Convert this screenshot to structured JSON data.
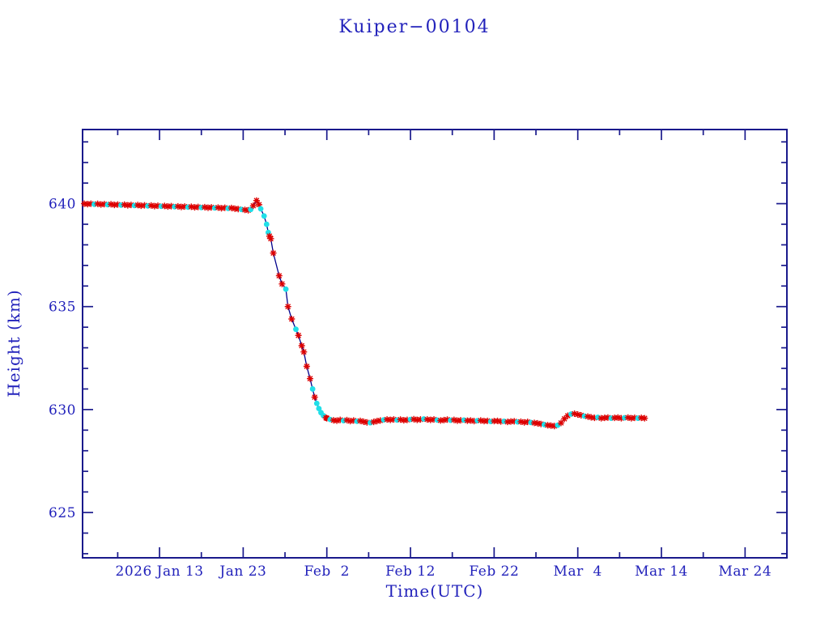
{
  "window": {
    "background": "#ffffff"
  },
  "colors": {
    "text_blue": "#2222bb",
    "axis_navy": "#1a1a8c",
    "line_navy": "#00008b",
    "marker_red": "#dc0000",
    "marker_cyan": "#20dfe8",
    "background": "#ffffff"
  },
  "chart_data": {
    "type": "line",
    "title": "Kuiper−00104",
    "xlabel": "Time(UTC)",
    "ylabel": "Height (km)",
    "x_axis_note": "t is days since 2026 Jan 4 00:00 UTC",
    "xlim": [
      -0.2,
      84
    ],
    "ylim": [
      622.8,
      643.6
    ],
    "grid": false,
    "legend": "none",
    "x_ticks": [
      {
        "t": 9,
        "label": "2026 Jan 13"
      },
      {
        "t": 19,
        "label": "Jan 23"
      },
      {
        "t": 29,
        "label": "Feb  2"
      },
      {
        "t": 39,
        "label": "Feb 12"
      },
      {
        "t": 49,
        "label": "Feb 22"
      },
      {
        "t": 59,
        "label": "Mar  4"
      },
      {
        "t": 69,
        "label": "Mar 14"
      },
      {
        "t": 79,
        "label": "Mar 24"
      }
    ],
    "x_minor_ticks": [
      4,
      14,
      24,
      34,
      44,
      54,
      64,
      74
    ],
    "y_ticks": [
      {
        "v": 625,
        "label": "625"
      },
      {
        "v": 630,
        "label": "630"
      },
      {
        "v": 635,
        "label": "635"
      },
      {
        "v": 640,
        "label": "640"
      }
    ],
    "y_minor_step": 1,
    "marker_legend": {
      "r": "red asterisk measurement",
      "c": "cyan dot measurement"
    },
    "points": [
      [
        0,
        640.0,
        "r"
      ],
      [
        0.4,
        639.98,
        "r"
      ],
      [
        0.8,
        640.0,
        "r"
      ],
      [
        1.2,
        639.97,
        "c"
      ],
      [
        1.6,
        639.99,
        "r"
      ],
      [
        2,
        639.96,
        "r"
      ],
      [
        2.4,
        639.98,
        "r"
      ],
      [
        2.8,
        639.95,
        "c"
      ],
      [
        3.2,
        639.97,
        "r"
      ],
      [
        3.6,
        639.94,
        "r"
      ],
      [
        4,
        639.96,
        "r"
      ],
      [
        4.4,
        639.93,
        "c"
      ],
      [
        4.8,
        639.95,
        "r"
      ],
      [
        5.2,
        639.92,
        "r"
      ],
      [
        5.6,
        639.94,
        "r"
      ],
      [
        6,
        639.91,
        "c"
      ],
      [
        6.4,
        639.93,
        "r"
      ],
      [
        6.8,
        639.9,
        "r"
      ],
      [
        7.2,
        639.92,
        "r"
      ],
      [
        7.6,
        639.89,
        "c"
      ],
      [
        8,
        639.91,
        "r"
      ],
      [
        8.4,
        639.88,
        "r"
      ],
      [
        8.8,
        639.9,
        "r"
      ],
      [
        9.2,
        639.87,
        "c"
      ],
      [
        9.6,
        639.89,
        "r"
      ],
      [
        10,
        639.86,
        "r"
      ],
      [
        10.4,
        639.88,
        "r"
      ],
      [
        10.8,
        639.85,
        "c"
      ],
      [
        11.2,
        639.87,
        "r"
      ],
      [
        11.6,
        639.84,
        "r"
      ],
      [
        12,
        639.86,
        "r"
      ],
      [
        12.4,
        639.83,
        "c"
      ],
      [
        12.8,
        639.85,
        "r"
      ],
      [
        13.2,
        639.82,
        "r"
      ],
      [
        13.6,
        639.84,
        "r"
      ],
      [
        14,
        639.81,
        "c"
      ],
      [
        14.4,
        639.83,
        "r"
      ],
      [
        14.8,
        639.8,
        "r"
      ],
      [
        15.2,
        639.82,
        "r"
      ],
      [
        15.6,
        639.79,
        "c"
      ],
      [
        16,
        639.81,
        "r"
      ],
      [
        16.4,
        639.78,
        "r"
      ],
      [
        16.8,
        639.8,
        "r"
      ],
      [
        17.2,
        639.77,
        "c"
      ],
      [
        17.6,
        639.79,
        "r"
      ],
      [
        18,
        639.76,
        "r"
      ],
      [
        18.4,
        639.74,
        "r"
      ],
      [
        18.8,
        639.72,
        "c"
      ],
      [
        19.2,
        639.7,
        "r"
      ],
      [
        19.6,
        639.68,
        "r"
      ],
      [
        19.9,
        639.72,
        "c"
      ],
      [
        20.2,
        639.9,
        "r"
      ],
      [
        20.6,
        640.15,
        "r"
      ],
      [
        20.9,
        639.95,
        "r"
      ],
      [
        21.1,
        639.75,
        "c"
      ],
      [
        21.5,
        639.4,
        "c"
      ],
      [
        21.8,
        639.0,
        "c"
      ],
      [
        22.0,
        638.6,
        "c"
      ],
      [
        22.15,
        638.42,
        "r"
      ],
      [
        22.3,
        638.3,
        "r"
      ],
      [
        22.6,
        637.6,
        "r"
      ],
      [
        23.3,
        636.5,
        "r"
      ],
      [
        23.65,
        636.1,
        "r"
      ],
      [
        24.1,
        635.85,
        "c"
      ],
      [
        24.35,
        635.0,
        "r"
      ],
      [
        24.8,
        634.4,
        "r"
      ],
      [
        25.3,
        633.9,
        "c"
      ],
      [
        25.6,
        633.6,
        "r"
      ],
      [
        26.0,
        633.1,
        "r"
      ],
      [
        26.25,
        632.8,
        "r"
      ],
      [
        26.6,
        632.1,
        "r"
      ],
      [
        27.0,
        631.5,
        "r"
      ],
      [
        27.3,
        631.0,
        "c"
      ],
      [
        27.55,
        630.6,
        "r"
      ],
      [
        27.8,
        630.3,
        "c"
      ],
      [
        28.05,
        630.05,
        "c"
      ],
      [
        28.3,
        629.85,
        "c"
      ],
      [
        28.6,
        629.7,
        "c"
      ],
      [
        28.9,
        629.6,
        "r"
      ],
      [
        29.0,
        629.58,
        "r"
      ],
      [
        29.4,
        629.52,
        "c"
      ],
      [
        29.8,
        629.48,
        "r"
      ],
      [
        30.2,
        629.46,
        "r"
      ],
      [
        30.6,
        629.5,
        "r"
      ],
      [
        31.0,
        629.46,
        "c"
      ],
      [
        31.4,
        629.49,
        "r"
      ],
      [
        31.8,
        629.44,
        "r"
      ],
      [
        32.2,
        629.47,
        "r"
      ],
      [
        32.6,
        629.43,
        "c"
      ],
      [
        33.0,
        629.45,
        "r"
      ],
      [
        33.4,
        629.41,
        "r"
      ],
      [
        33.8,
        629.38,
        "r"
      ],
      [
        34.2,
        629.36,
        "c"
      ],
      [
        34.6,
        629.4,
        "r"
      ],
      [
        35.0,
        629.44,
        "r"
      ],
      [
        35.4,
        629.47,
        "r"
      ],
      [
        35.8,
        629.5,
        "c"
      ],
      [
        36.2,
        629.52,
        "r"
      ],
      [
        36.6,
        629.5,
        "r"
      ],
      [
        37.0,
        629.52,
        "r"
      ],
      [
        37.4,
        629.49,
        "c"
      ],
      [
        37.8,
        629.51,
        "r"
      ],
      [
        38.2,
        629.48,
        "r"
      ],
      [
        38.6,
        629.5,
        "r"
      ],
      [
        39.0,
        629.52,
        "c"
      ],
      [
        39.4,
        629.53,
        "r"
      ],
      [
        39.8,
        629.5,
        "r"
      ],
      [
        40.2,
        629.52,
        "r"
      ],
      [
        40.6,
        629.54,
        "c"
      ],
      [
        41.0,
        629.52,
        "r"
      ],
      [
        41.4,
        629.5,
        "r"
      ],
      [
        41.8,
        629.52,
        "r"
      ],
      [
        42.2,
        629.49,
        "c"
      ],
      [
        42.6,
        629.47,
        "r"
      ],
      [
        43.0,
        629.49,
        "r"
      ],
      [
        43.4,
        629.51,
        "r"
      ],
      [
        43.8,
        629.48,
        "c"
      ],
      [
        44.2,
        629.5,
        "r"
      ],
      [
        44.6,
        629.46,
        "r"
      ],
      [
        45.0,
        629.48,
        "r"
      ],
      [
        45.4,
        629.49,
        "c"
      ],
      [
        45.8,
        629.46,
        "r"
      ],
      [
        46.2,
        629.47,
        "r"
      ],
      [
        46.6,
        629.44,
        "r"
      ],
      [
        47.0,
        629.46,
        "c"
      ],
      [
        47.4,
        629.47,
        "r"
      ],
      [
        47.8,
        629.44,
        "r"
      ],
      [
        48.2,
        629.45,
        "r"
      ],
      [
        48.6,
        629.42,
        "c"
      ],
      [
        49.0,
        629.44,
        "r"
      ],
      [
        49.4,
        629.45,
        "r"
      ],
      [
        49.8,
        629.42,
        "r"
      ],
      [
        50.2,
        629.43,
        "c"
      ],
      [
        50.6,
        629.4,
        "r"
      ],
      [
        51.0,
        629.42,
        "r"
      ],
      [
        51.4,
        629.43,
        "r"
      ],
      [
        51.8,
        629.4,
        "c"
      ],
      [
        52.2,
        629.41,
        "r"
      ],
      [
        52.6,
        629.38,
        "r"
      ],
      [
        53.0,
        629.4,
        "r"
      ],
      [
        53.4,
        629.37,
        "c"
      ],
      [
        53.8,
        629.35,
        "r"
      ],
      [
        54.2,
        629.33,
        "r"
      ],
      [
        54.6,
        629.3,
        "r"
      ],
      [
        55.0,
        629.27,
        "c"
      ],
      [
        55.4,
        629.24,
        "r"
      ],
      [
        55.8,
        629.22,
        "r"
      ],
      [
        56.2,
        629.2,
        "r"
      ],
      [
        56.6,
        629.24,
        "c"
      ],
      [
        57.0,
        629.35,
        "r"
      ],
      [
        57.4,
        629.55,
        "r"
      ],
      [
        57.8,
        629.7,
        "r"
      ],
      [
        58.2,
        629.78,
        "c"
      ],
      [
        58.6,
        629.8,
        "r"
      ],
      [
        59.0,
        629.76,
        "r"
      ],
      [
        59.4,
        629.72,
        "r"
      ],
      [
        59.8,
        629.68,
        "c"
      ],
      [
        60.2,
        629.66,
        "r"
      ],
      [
        60.6,
        629.62,
        "r"
      ],
      [
        61.0,
        629.6,
        "r"
      ],
      [
        61.4,
        629.62,
        "c"
      ],
      [
        61.8,
        629.58,
        "r"
      ],
      [
        62.2,
        629.6,
        "r"
      ],
      [
        62.6,
        629.61,
        "r"
      ],
      [
        63.0,
        629.58,
        "c"
      ],
      [
        63.4,
        629.6,
        "r"
      ],
      [
        63.8,
        629.61,
        "r"
      ],
      [
        64.2,
        629.58,
        "r"
      ],
      [
        64.6,
        629.6,
        "c"
      ],
      [
        65.0,
        629.61,
        "r"
      ],
      [
        65.4,
        629.58,
        "r"
      ],
      [
        65.8,
        629.6,
        "r"
      ],
      [
        66.2,
        629.58,
        "c"
      ],
      [
        66.6,
        629.6,
        "r"
      ],
      [
        67.0,
        629.58,
        "r"
      ]
    ]
  }
}
